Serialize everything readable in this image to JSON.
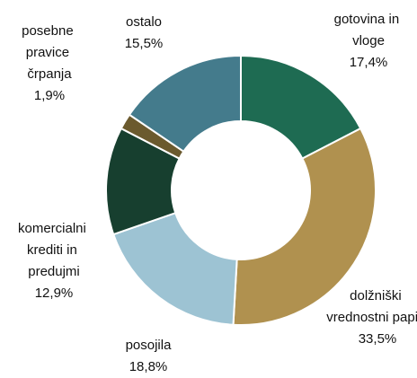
{
  "chart_data": {
    "type": "donut",
    "categories": [
      "gotovina in vloge",
      "dolžniški vrednostni papirji",
      "posojila",
      "komercialni krediti in predujmi",
      "posebne pravice črpanja",
      "ostalo"
    ],
    "values": [
      17.4,
      33.5,
      18.8,
      12.9,
      1.9,
      15.5
    ],
    "value_labels": [
      "17,4%",
      "33,5%",
      "18,8%",
      "12,9%",
      "1,9%",
      "15,5%"
    ],
    "colors": [
      "#1e6b52",
      "#b0914f",
      "#9dc3d3",
      "#173f2f",
      "#6b5a2e",
      "#447b8c"
    ]
  }
}
